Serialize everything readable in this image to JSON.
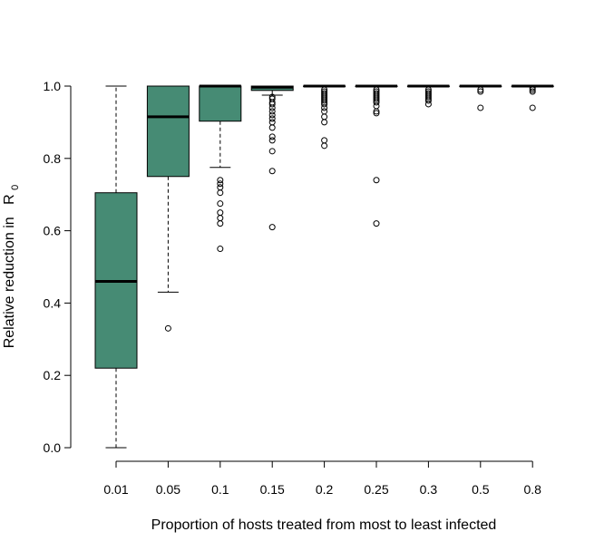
{
  "chart_data": {
    "type": "boxplot",
    "title": "",
    "xlabel": "Proportion of hosts treated from most to least infected",
    "ylabel_main": "Relative reduction in",
    "ylabel_symbol": "R",
    "ylabel_subscript": "0",
    "ylim": [
      0.0,
      1.0
    ],
    "yticks": [
      0.0,
      0.2,
      0.4,
      0.6,
      0.8,
      1.0
    ],
    "ytick_labels": [
      "0.0",
      "0.2",
      "0.4",
      "0.6",
      "0.8",
      "1.0"
    ],
    "grid": false,
    "box_color": "#468b74",
    "categories": [
      "0.01",
      "0.05",
      "0.1",
      "0.15",
      "0.2",
      "0.25",
      "0.3",
      "0.5",
      "0.8"
    ],
    "boxes": [
      {
        "label": "0.01",
        "whisker_low": 0.0,
        "q1": 0.22,
        "median": 0.46,
        "q3": 0.705,
        "whisker_high": 1.0,
        "outliers": []
      },
      {
        "label": "0.05",
        "whisker_low": 0.43,
        "q1": 0.75,
        "median": 0.915,
        "q3": 1.0,
        "whisker_high": 1.0,
        "outliers": [
          0.33
        ]
      },
      {
        "label": "0.1",
        "whisker_low": 0.775,
        "q1": 0.903,
        "median": 1.0,
        "q3": 1.0,
        "whisker_high": 1.0,
        "outliers": [
          0.55,
          0.62,
          0.635,
          0.65,
          0.675,
          0.705,
          0.72,
          0.73,
          0.74
        ]
      },
      {
        "label": "0.15",
        "whisker_low": 0.975,
        "q1": 0.988,
        "median": 0.997,
        "q3": 1.0,
        "whisker_high": 1.0,
        "outliers": [
          0.61,
          0.765,
          0.82,
          0.85,
          0.86,
          0.885,
          0.9,
          0.91,
          0.92,
          0.93,
          0.94,
          0.95,
          0.955,
          0.965,
          0.97
        ]
      },
      {
        "label": "0.2",
        "whisker_low": 1.0,
        "q1": 1.0,
        "median": 1.0,
        "q3": 1.0,
        "whisker_high": 1.0,
        "outliers": [
          0.835,
          0.85,
          0.9,
          0.915,
          0.93,
          0.94,
          0.95,
          0.955,
          0.96,
          0.965,
          0.97,
          0.975,
          0.98,
          0.985,
          0.99
        ]
      },
      {
        "label": "0.25",
        "whisker_low": 1.0,
        "q1": 1.0,
        "median": 1.0,
        "q3": 1.0,
        "whisker_high": 1.0,
        "outliers": [
          0.62,
          0.74,
          0.925,
          0.93,
          0.945,
          0.955,
          0.96,
          0.965,
          0.97,
          0.975,
          0.98,
          0.985,
          0.99
        ]
      },
      {
        "label": "0.3",
        "whisker_low": 1.0,
        "q1": 1.0,
        "median": 1.0,
        "q3": 1.0,
        "whisker_high": 1.0,
        "outliers": [
          0.95,
          0.96,
          0.965,
          0.97,
          0.975,
          0.98,
          0.985,
          0.99
        ]
      },
      {
        "label": "0.5",
        "whisker_low": 1.0,
        "q1": 1.0,
        "median": 1.0,
        "q3": 1.0,
        "whisker_high": 1.0,
        "outliers": [
          0.94,
          0.985,
          0.99
        ]
      },
      {
        "label": "0.8",
        "whisker_low": 1.0,
        "q1": 1.0,
        "median": 1.0,
        "q3": 1.0,
        "whisker_high": 1.0,
        "outliers": [
          0.94,
          0.985,
          0.99,
          0.995
        ]
      }
    ]
  }
}
